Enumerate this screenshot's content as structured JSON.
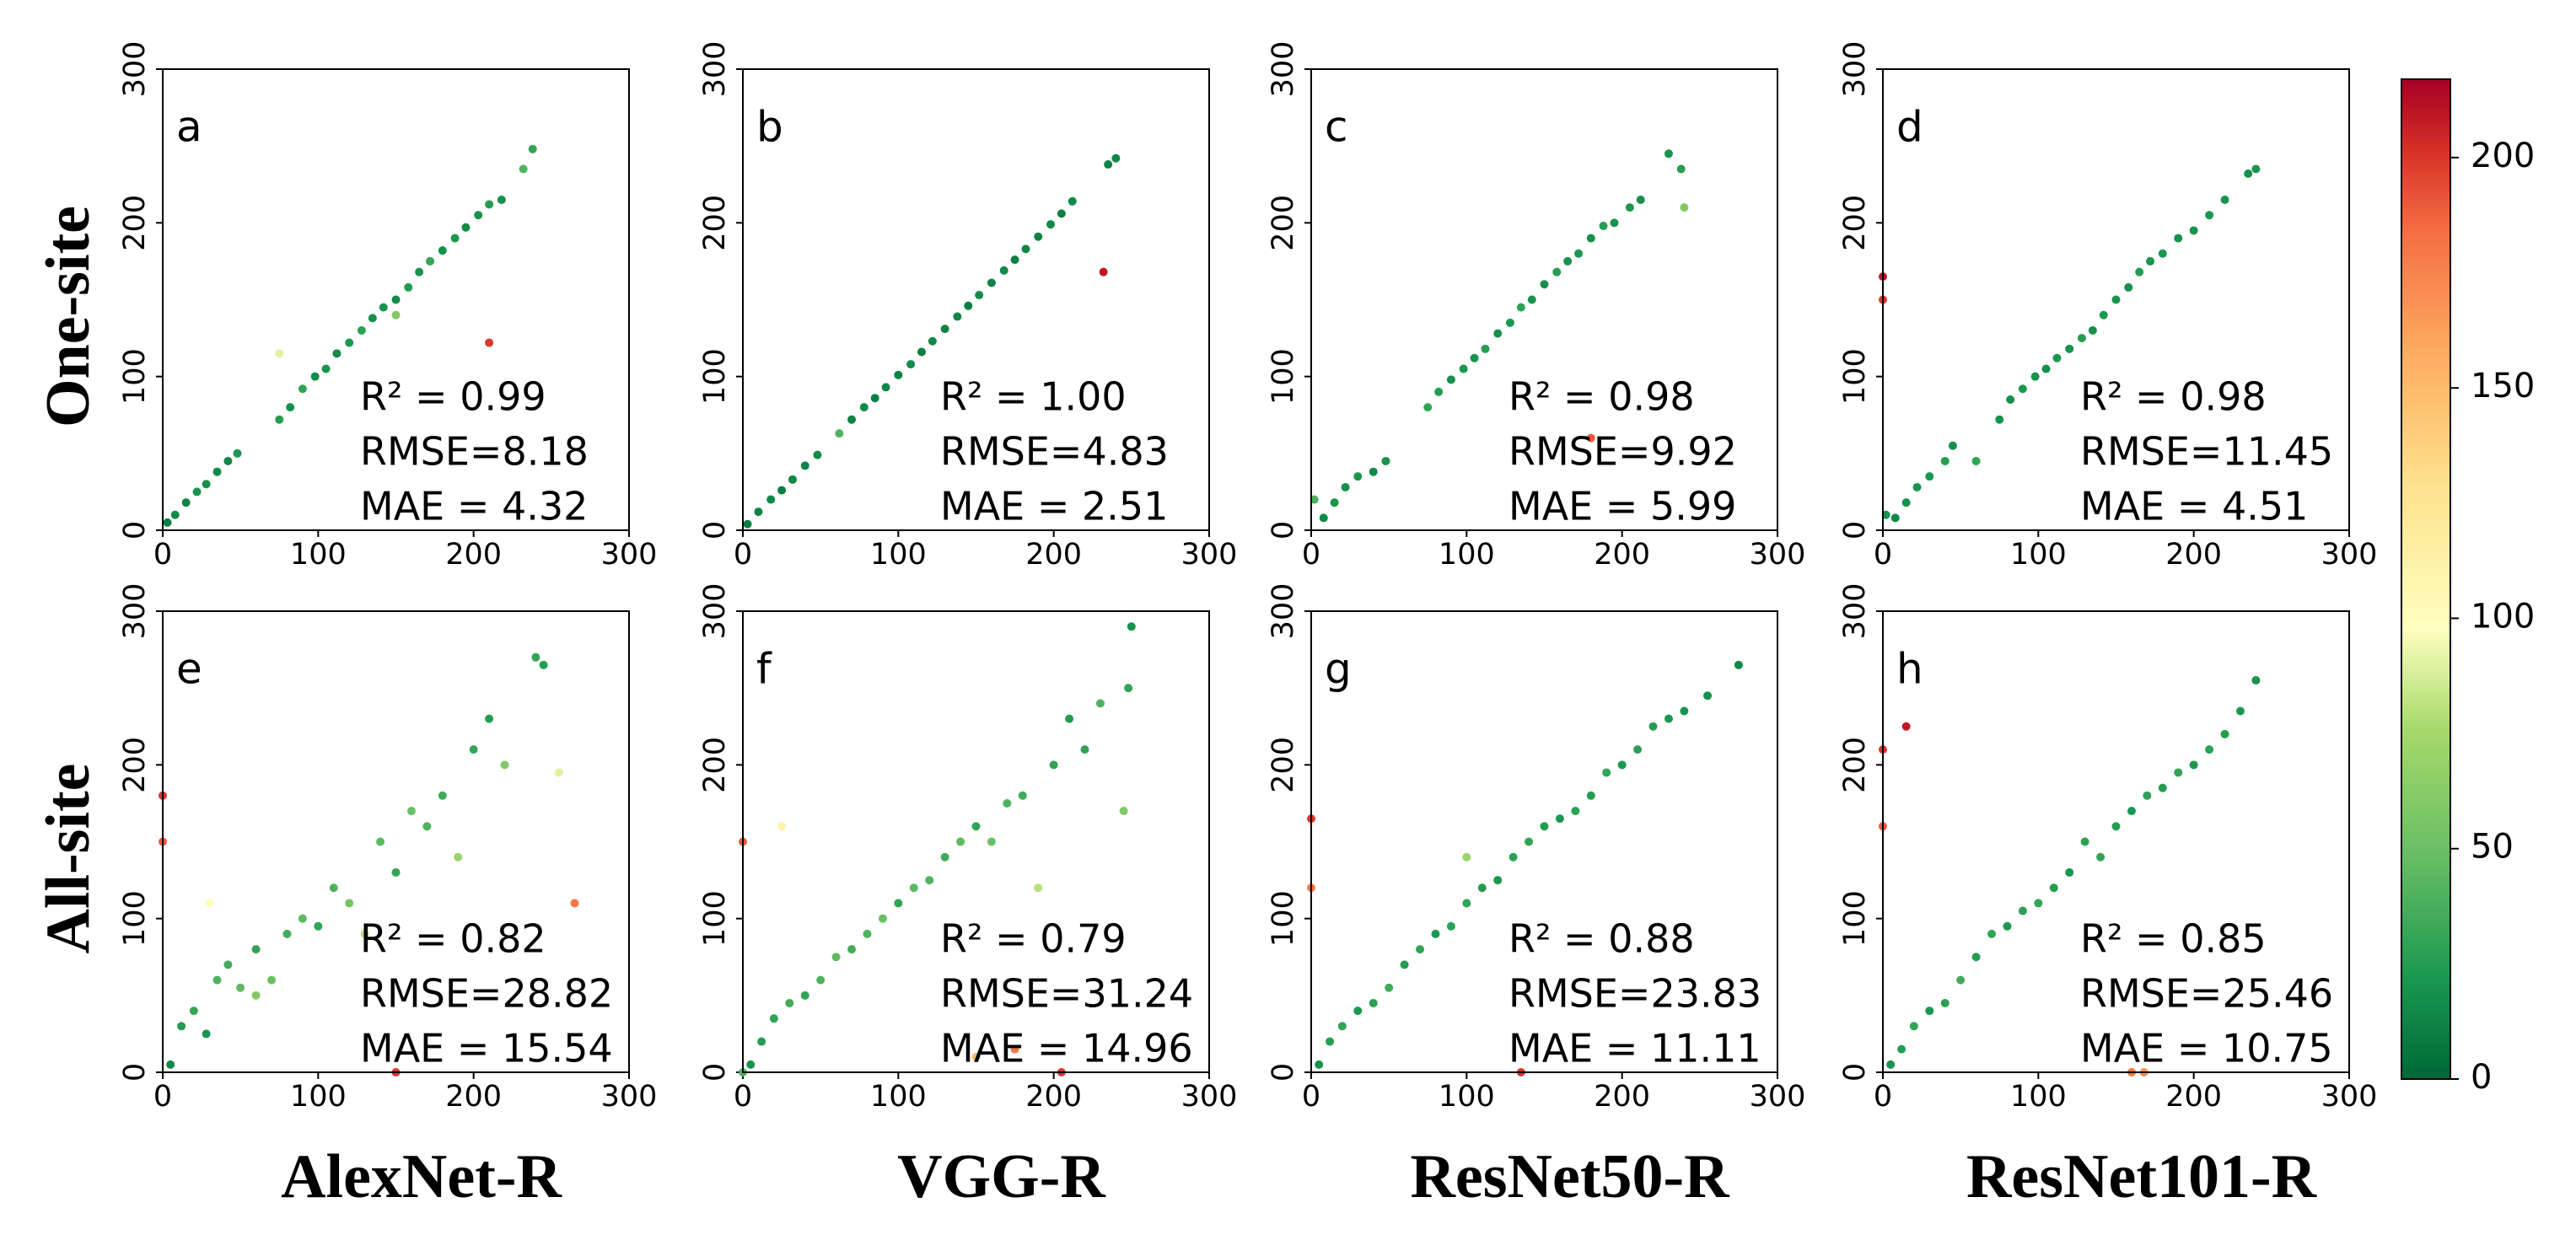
{
  "row_labels": [
    "One-site",
    "All-site"
  ],
  "column_labels": [
    "AlexNet-R",
    "VGG-R",
    "ResNet50-R",
    "ResNet101-R"
  ],
  "colorbar": {
    "colormap": "RdYlGn_r",
    "lim": [
      0,
      217
    ],
    "ticks": [
      0,
      50,
      100,
      150,
      200
    ]
  },
  "chart_data": [
    {
      "type": "scatter",
      "label": "a",
      "xlim": [
        0,
        300
      ],
      "ylim": [
        0,
        300
      ],
      "xticks": [
        0,
        100,
        200,
        300
      ],
      "yticks": [
        0,
        100,
        200,
        300
      ],
      "annotations": [
        "R² =  0.99",
        "RMSE=8.18",
        "MAE = 4.32"
      ],
      "x": [
        3,
        8,
        15,
        22,
        28,
        35,
        42,
        48,
        75,
        82,
        90,
        98,
        105,
        112,
        120,
        128,
        135,
        142,
        150,
        158,
        165,
        172,
        180,
        188,
        195,
        203,
        210,
        218,
        232,
        238,
        210,
        150,
        75
      ],
      "y": [
        5,
        10,
        18,
        25,
        30,
        38,
        45,
        50,
        72,
        80,
        92,
        100,
        105,
        115,
        122,
        130,
        138,
        145,
        150,
        158,
        168,
        175,
        182,
        190,
        197,
        205,
        212,
        215,
        235,
        248,
        122,
        140,
        115
      ],
      "c": [
        10,
        15,
        12,
        20,
        18,
        15,
        14,
        22,
        25,
        18,
        30,
        16,
        20,
        15,
        22,
        28,
        18,
        20,
        15,
        24,
        20,
        30,
        18,
        22,
        16,
        20,
        25,
        18,
        40,
        30,
        200,
        60,
        90
      ]
    },
    {
      "type": "scatter",
      "label": "b",
      "xlim": [
        0,
        300
      ],
      "ylim": [
        0,
        300
      ],
      "xticks": [
        0,
        100,
        200,
        300
      ],
      "yticks": [
        0,
        100,
        200,
        300
      ],
      "annotations": [
        "R² =  1.00",
        "RMSE=4.83",
        "MAE = 2.51"
      ],
      "x": [
        3,
        10,
        18,
        25,
        32,
        40,
        48,
        62,
        70,
        78,
        85,
        92,
        100,
        108,
        115,
        122,
        130,
        138,
        145,
        152,
        160,
        168,
        175,
        182,
        190,
        198,
        205,
        212,
        235,
        240,
        232
      ],
      "y": [
        4,
        12,
        20,
        26,
        33,
        42,
        49,
        63,
        72,
        80,
        86,
        93,
        101,
        108,
        116,
        123,
        131,
        139,
        146,
        153,
        161,
        169,
        176,
        183,
        191,
        199,
        206,
        214,
        238,
        242,
        168
      ],
      "c": [
        10,
        12,
        15,
        10,
        14,
        12,
        16,
        40,
        12,
        15,
        10,
        14,
        12,
        16,
        10,
        15,
        12,
        14,
        10,
        16,
        12,
        15,
        10,
        14,
        12,
        16,
        10,
        15,
        12,
        14,
        210
      ]
    },
    {
      "type": "scatter",
      "label": "c",
      "xlim": [
        0,
        300
      ],
      "ylim": [
        0,
        300
      ],
      "xticks": [
        0,
        100,
        200,
        300
      ],
      "yticks": [
        0,
        100,
        200,
        300
      ],
      "annotations": [
        "R² =  0.98",
        "RMSE=9.92",
        "MAE = 5.99"
      ],
      "x": [
        2,
        8,
        15,
        22,
        30,
        40,
        48,
        75,
        82,
        90,
        98,
        105,
        112,
        120,
        128,
        135,
        142,
        150,
        158,
        165,
        172,
        180,
        188,
        195,
        205,
        212,
        230,
        238,
        240,
        180
      ],
      "y": [
        20,
        8,
        18,
        28,
        35,
        38,
        45,
        80,
        90,
        98,
        105,
        112,
        118,
        128,
        135,
        145,
        150,
        160,
        168,
        175,
        180,
        190,
        198,
        200,
        210,
        215,
        245,
        235,
        210,
        60
      ],
      "c": [
        40,
        15,
        20,
        18,
        22,
        15,
        20,
        30,
        25,
        18,
        22,
        20,
        25,
        18,
        22,
        28,
        20,
        18,
        25,
        20,
        22,
        18,
        25,
        20,
        22,
        18,
        20,
        25,
        60,
        190
      ]
    },
    {
      "type": "scatter",
      "label": "d",
      "xlim": [
        0,
        300
      ],
      "ylim": [
        0,
        300
      ],
      "xticks": [
        0,
        100,
        200,
        300
      ],
      "yticks": [
        0,
        100,
        200,
        300
      ],
      "annotations": [
        "R² =  0.98",
        "RMSE=11.45",
        "MAE = 4.51"
      ],
      "x": [
        2,
        8,
        15,
        22,
        30,
        40,
        45,
        60,
        75,
        82,
        90,
        98,
        105,
        112,
        120,
        128,
        135,
        142,
        150,
        158,
        165,
        172,
        180,
        190,
        200,
        210,
        220,
        235,
        240,
        0,
        0
      ],
      "y": [
        10,
        8,
        18,
        28,
        35,
        45,
        55,
        45,
        72,
        85,
        92,
        100,
        105,
        112,
        118,
        125,
        130,
        140,
        150,
        158,
        168,
        175,
        180,
        190,
        195,
        205,
        215,
        232,
        235,
        165,
        150
      ],
      "c": [
        20,
        15,
        18,
        20,
        22,
        25,
        18,
        30,
        20,
        18,
        22,
        20,
        18,
        22,
        20,
        25,
        18,
        22,
        20,
        18,
        25,
        20,
        22,
        18,
        20,
        22,
        20,
        18,
        20,
        210,
        200
      ]
    },
    {
      "type": "scatter",
      "label": "e",
      "xlim": [
        0,
        300
      ],
      "ylim": [
        0,
        300
      ],
      "xticks": [
        0,
        100,
        200,
        300
      ],
      "yticks": [
        0,
        100,
        200,
        300
      ],
      "annotations": [
        "R² =  0.82",
        "RMSE=28.82",
        "MAE = 15.54"
      ],
      "x": [
        0,
        0,
        5,
        12,
        20,
        28,
        35,
        42,
        50,
        60,
        70,
        80,
        90,
        100,
        110,
        120,
        130,
        140,
        150,
        160,
        170,
        180,
        190,
        200,
        210,
        220,
        240,
        245,
        255,
        265,
        150,
        60,
        30
      ],
      "y": [
        180,
        150,
        5,
        30,
        40,
        25,
        60,
        70,
        55,
        80,
        60,
        90,
        100,
        95,
        120,
        110,
        90,
        150,
        130,
        170,
        160,
        180,
        140,
        210,
        230,
        200,
        270,
        265,
        195,
        110,
        0,
        50,
        110
      ],
      "c": [
        200,
        190,
        15,
        25,
        30,
        20,
        40,
        35,
        45,
        30,
        50,
        35,
        45,
        30,
        40,
        55,
        80,
        45,
        30,
        50,
        40,
        35,
        70,
        30,
        25,
        60,
        30,
        25,
        90,
        180,
        200,
        60,
        100
      ]
    },
    {
      "type": "scatter",
      "label": "f",
      "xlim": [
        0,
        300
      ],
      "ylim": [
        0,
        300
      ],
      "xticks": [
        0,
        100,
        200,
        300
      ],
      "yticks": [
        0,
        100,
        200,
        300
      ],
      "annotations": [
        "R² =  0.79",
        "RMSE=31.24",
        "MAE = 14.96"
      ],
      "x": [
        0,
        0,
        5,
        12,
        20,
        25,
        30,
        40,
        50,
        60,
        70,
        80,
        90,
        100,
        110,
        120,
        130,
        140,
        150,
        160,
        170,
        180,
        190,
        200,
        210,
        220,
        230,
        245,
        248,
        250,
        150,
        175,
        205
      ],
      "y": [
        150,
        0,
        5,
        20,
        35,
        160,
        45,
        50,
        60,
        75,
        80,
        90,
        100,
        110,
        120,
        125,
        140,
        150,
        160,
        150,
        175,
        180,
        120,
        200,
        230,
        210,
        240,
        170,
        250,
        290,
        10,
        15,
        0
      ],
      "c": [
        190,
        40,
        20,
        25,
        30,
        110,
        35,
        30,
        40,
        45,
        35,
        40,
        50,
        30,
        45,
        40,
        35,
        45,
        30,
        50,
        40,
        35,
        80,
        30,
        25,
        30,
        40,
        60,
        30,
        20,
        150,
        180,
        200
      ]
    },
    {
      "type": "scatter",
      "label": "g",
      "xlim": [
        0,
        300
      ],
      "ylim": [
        0,
        300
      ],
      "xticks": [
        0,
        100,
        200,
        300
      ],
      "yticks": [
        0,
        100,
        200,
        300
      ],
      "annotations": [
        "R² =  0.88",
        "RMSE=23.83",
        "MAE = 11.11"
      ],
      "x": [
        0,
        0,
        5,
        12,
        20,
        30,
        40,
        50,
        60,
        70,
        80,
        90,
        100,
        110,
        120,
        130,
        140,
        150,
        160,
        170,
        180,
        190,
        200,
        210,
        220,
        230,
        240,
        255,
        275,
        135,
        100
      ],
      "y": [
        165,
        120,
        5,
        20,
        30,
        40,
        45,
        55,
        70,
        80,
        90,
        95,
        110,
        120,
        125,
        140,
        150,
        160,
        165,
        170,
        180,
        195,
        200,
        210,
        225,
        230,
        235,
        245,
        265,
        0,
        140
      ],
      "c": [
        200,
        180,
        20,
        25,
        30,
        22,
        28,
        35,
        25,
        30,
        22,
        28,
        30,
        25,
        22,
        28,
        30,
        25,
        22,
        28,
        25,
        30,
        22,
        28,
        25,
        22,
        20,
        18,
        15,
        200,
        70
      ]
    },
    {
      "type": "scatter",
      "label": "h",
      "xlim": [
        0,
        300
      ],
      "ylim": [
        0,
        300
      ],
      "xticks": [
        0,
        100,
        200,
        300
      ],
      "yticks": [
        0,
        100,
        200,
        300
      ],
      "annotations": [
        "R² =  0.85",
        "RMSE=25.46",
        "MAE = 10.75"
      ],
      "x": [
        0,
        0,
        15,
        5,
        12,
        20,
        30,
        40,
        50,
        60,
        70,
        80,
        90,
        100,
        110,
        120,
        130,
        140,
        150,
        160,
        170,
        180,
        190,
        200,
        210,
        220,
        230,
        240,
        160,
        168
      ],
      "y": [
        210,
        160,
        225,
        5,
        15,
        30,
        40,
        45,
        60,
        75,
        90,
        95,
        105,
        110,
        120,
        130,
        150,
        140,
        160,
        170,
        180,
        185,
        195,
        200,
        210,
        220,
        235,
        255,
        0,
        0
      ],
      "c": [
        200,
        190,
        210,
        20,
        25,
        30,
        22,
        28,
        35,
        25,
        30,
        22,
        28,
        30,
        25,
        22,
        28,
        30,
        25,
        22,
        28,
        25,
        30,
        22,
        28,
        25,
        22,
        20,
        180,
        170
      ]
    }
  ]
}
